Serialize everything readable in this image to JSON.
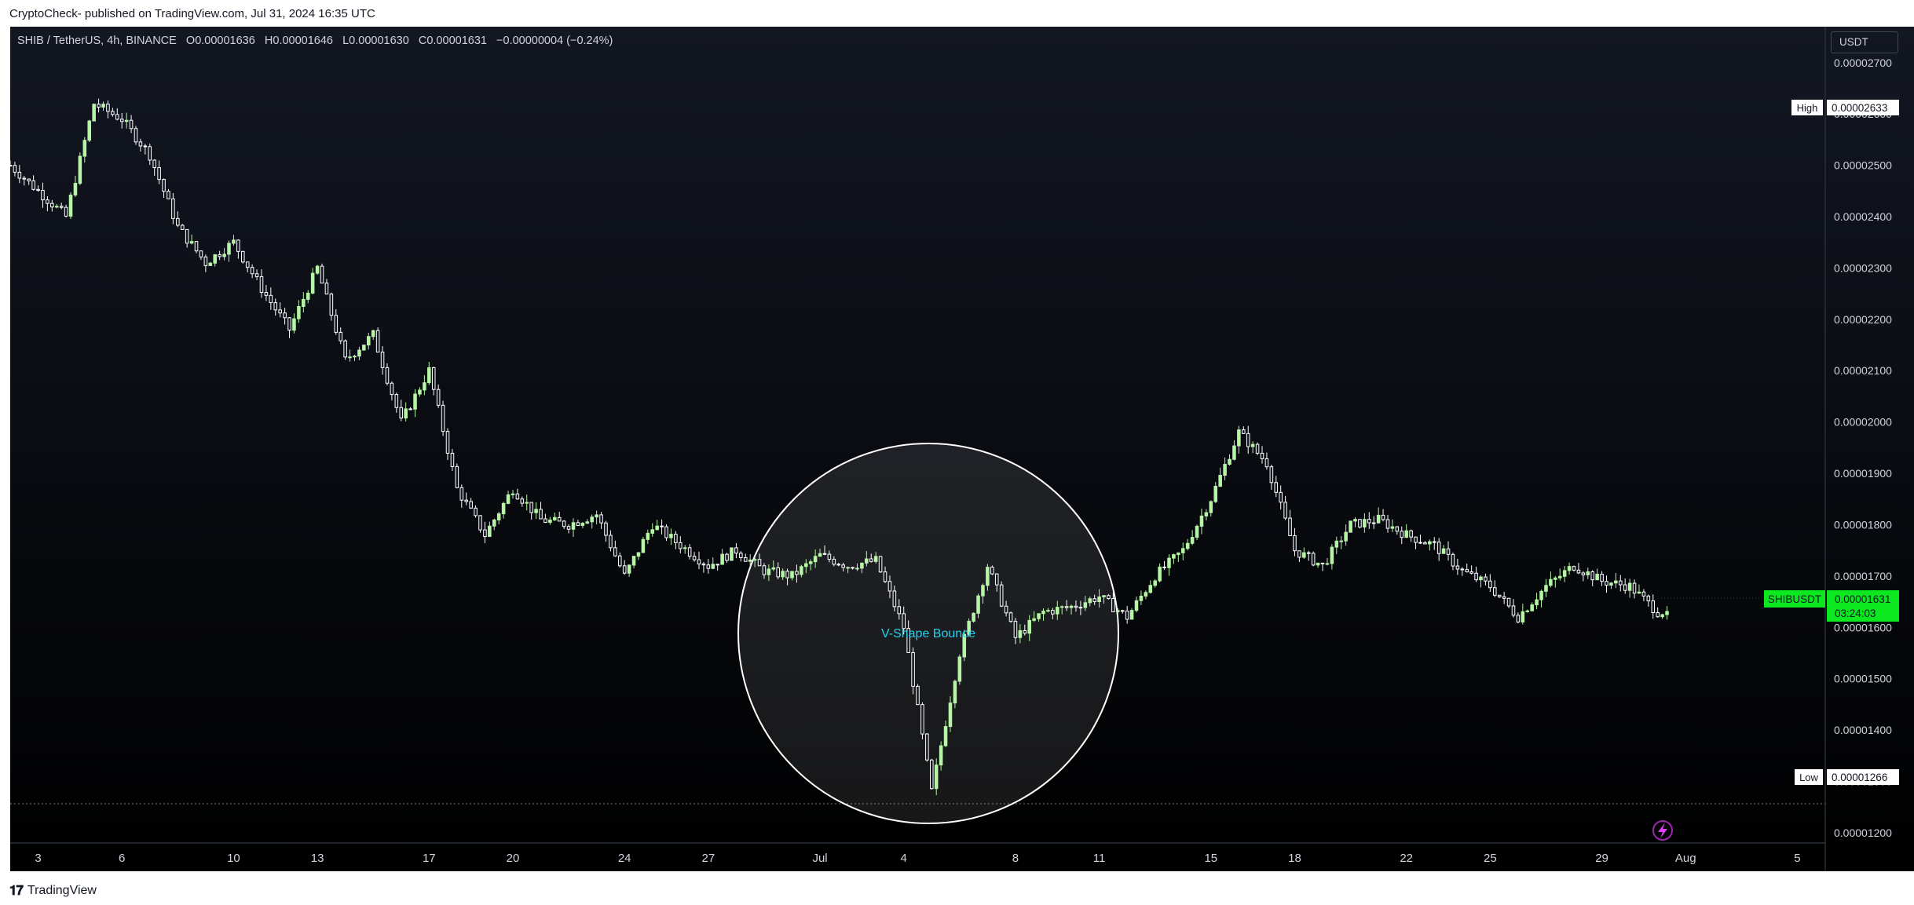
{
  "header": {
    "published_by": "CryptoCheck- published on TradingView.com, Jul 31, 2024 16:35 UTC"
  },
  "legend": {
    "symbol_line": "SHIB / TetherUS, 4h, BINANCE",
    "open_label": "O",
    "open": "0.00001636",
    "high_label": "H",
    "high": "0.00001646",
    "low_label": "L",
    "low": "0.00001630",
    "close_label": "C",
    "close": "0.00001631",
    "change": "−0.00000004 (−0.24%)"
  },
  "price_axis": {
    "currency": "USDT",
    "ticks": [
      "0.00002700",
      "0.00002600",
      "0.00002500",
      "0.00002400",
      "0.00002300",
      "0.00002200",
      "0.00002100",
      "0.00002000",
      "0.00001900",
      "0.00001800",
      "0.00001700",
      "0.00001600",
      "0.00001500",
      "0.00001400",
      "0.00001300",
      "0.00001200"
    ],
    "high_label": "High",
    "high_value": "0.00002633",
    "low_label": "Low",
    "low_value": "0.00001266",
    "symbol_tag": "SHIBUSDT",
    "last_price": "0.00001631",
    "countdown": "03:24:03"
  },
  "time_axis": {
    "ticks": [
      "3",
      "6",
      "10",
      "13",
      "17",
      "20",
      "24",
      "27",
      "Jul",
      "4",
      "8",
      "11",
      "15",
      "18",
      "22",
      "25",
      "29",
      "Aug",
      "5"
    ]
  },
  "annotation": {
    "label": "V-Shape Bounce"
  },
  "footer": {
    "brand": "TradingView"
  },
  "colors": {
    "background_top": "#131722",
    "background_bottom": "#000000",
    "up_candle": "#b6f5a6",
    "down_candle": "#ffffff",
    "last_price_tag": "#0be81f",
    "annotation_text": "#22d3ee"
  },
  "chart_data": {
    "type": "candlestick",
    "title": "SHIB / TetherUS, 4h, BINANCE",
    "timeframe": "4h",
    "x_range": [
      "2024-06-02",
      "2024-08-06"
    ],
    "y_range": [
      1.18e-05,
      2.77e-05
    ],
    "anchors": [
      [
        "2024-06-02",
        2.5e-05
      ],
      [
        "2024-06-03",
        2.45e-05
      ],
      [
        "2024-06-04",
        2.4e-05
      ],
      [
        "2024-06-05",
        2.62e-05
      ],
      [
        "2024-06-06",
        2.59e-05
      ],
      [
        "2024-06-07",
        2.52e-05
      ],
      [
        "2024-06-08",
        2.38e-05
      ],
      [
        "2024-06-09",
        2.31e-05
      ],
      [
        "2024-06-10",
        2.35e-05
      ],
      [
        "2024-06-11",
        2.26e-05
      ],
      [
        "2024-06-12",
        2.18e-05
      ],
      [
        "2024-06-13",
        2.3e-05
      ],
      [
        "2024-06-14",
        2.12e-05
      ],
      [
        "2024-06-15",
        2.17e-05
      ],
      [
        "2024-06-16",
        2e-05
      ],
      [
        "2024-06-17",
        2.1e-05
      ],
      [
        "2024-06-18",
        1.87e-05
      ],
      [
        "2024-06-19",
        1.78e-05
      ],
      [
        "2024-06-20",
        1.87e-05
      ],
      [
        "2024-06-21",
        1.81e-05
      ],
      [
        "2024-06-22",
        1.8e-05
      ],
      [
        "2024-06-23",
        1.82e-05
      ],
      [
        "2024-06-24",
        1.7e-05
      ],
      [
        "2024-06-25",
        1.8e-05
      ],
      [
        "2024-06-26",
        1.76e-05
      ],
      [
        "2024-06-27",
        1.72e-05
      ],
      [
        "2024-06-28",
        1.75e-05
      ],
      [
        "2024-06-29",
        1.71e-05
      ],
      [
        "2024-06-30",
        1.7e-05
      ],
      [
        "2024-07-01",
        1.74e-05
      ],
      [
        "2024-07-02",
        1.72e-05
      ],
      [
        "2024-07-03",
        1.73e-05
      ],
      [
        "2024-07-04",
        1.6e-05
      ],
      [
        "2024-07-05",
        1.28e-05
      ],
      [
        "2024-07-06",
        1.55e-05
      ],
      [
        "2024-07-07",
        1.72e-05
      ],
      [
        "2024-07-08",
        1.58e-05
      ],
      [
        "2024-07-09",
        1.63e-05
      ],
      [
        "2024-07-10",
        1.64e-05
      ],
      [
        "2024-07-11",
        1.66e-05
      ],
      [
        "2024-07-12",
        1.62e-05
      ],
      [
        "2024-07-13",
        1.7e-05
      ],
      [
        "2024-07-14",
        1.75e-05
      ],
      [
        "2024-07-15",
        1.85e-05
      ],
      [
        "2024-07-16",
        1.98e-05
      ],
      [
        "2024-07-17",
        1.92e-05
      ],
      [
        "2024-07-18",
        1.75e-05
      ],
      [
        "2024-07-19",
        1.72e-05
      ],
      [
        "2024-07-20",
        1.8e-05
      ],
      [
        "2024-07-21",
        1.81e-05
      ],
      [
        "2024-07-22",
        1.78e-05
      ],
      [
        "2024-07-23",
        1.76e-05
      ],
      [
        "2024-07-24",
        1.71e-05
      ],
      [
        "2024-07-25",
        1.68e-05
      ],
      [
        "2024-07-26",
        1.62e-05
      ],
      [
        "2024-07-27",
        1.68e-05
      ],
      [
        "2024-07-28",
        1.72e-05
      ],
      [
        "2024-07-29",
        1.69e-05
      ],
      [
        "2024-07-30",
        1.68e-05
      ],
      [
        "2024-07-31",
        1.63e-05
      ]
    ],
    "high": 2.633e-05,
    "low": 1.266e-05,
    "last": 1.631e-05,
    "annotations": [
      {
        "type": "ellipse",
        "label": "V-Shape Bounce",
        "center": [
          "2024-07-05",
          1.56e-05
        ]
      }
    ],
    "grid": false,
    "legend": "top-left"
  }
}
